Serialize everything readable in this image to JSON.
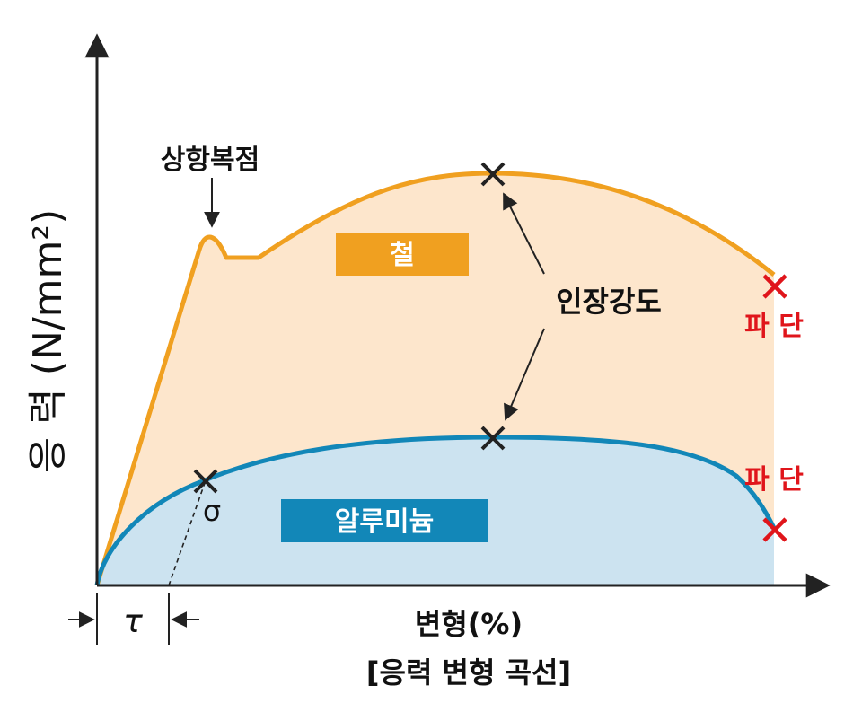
{
  "y_axis_label": "응 력 (N/mm²)",
  "x_axis_label": "변형(%)",
  "caption": "[응력 변형 곡선]",
  "yield_point_label": "상항복점",
  "tensile_strength_label": "인장강도",
  "steel_label": "철",
  "aluminum_label": "알루미늄",
  "fracture_label_steel": "파 단",
  "fracture_label_aluminum": "파 단",
  "sigma_label": "σ",
  "tau_label": "τ",
  "colors": {
    "steel_curve": "#F0A020",
    "steel_fill": "#FDE6CC",
    "steel_label_bg": "#F0A020",
    "aluminum_curve": "#1287B8",
    "aluminum_fill": "#CCE3F0",
    "aluminum_label_bg": "#1287B8",
    "fracture": "#E0151B",
    "axis": "#222222"
  }
}
